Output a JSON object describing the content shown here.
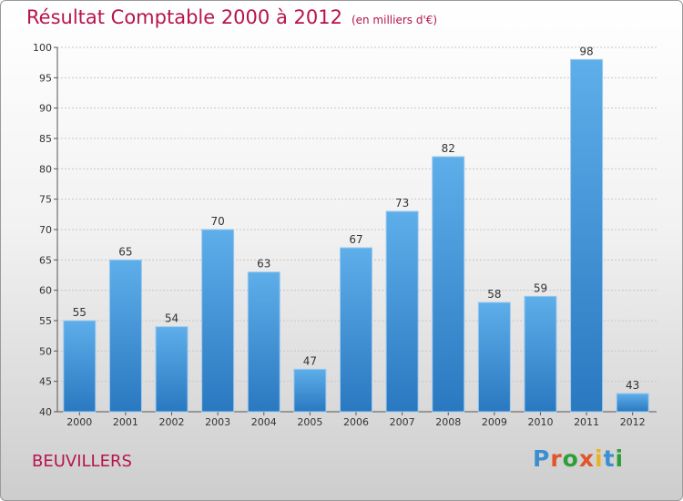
{
  "chart_data": {
    "type": "bar",
    "title": "Résultat Comptable 2000 à 2012",
    "subtitle": "(en milliers d'€)",
    "categories": [
      "2000",
      "2001",
      "2002",
      "2003",
      "2004",
      "2005",
      "2006",
      "2007",
      "2008",
      "2009",
      "2010",
      "2011",
      "2012"
    ],
    "values": [
      55,
      65,
      54,
      70,
      63,
      47,
      67,
      73,
      82,
      58,
      59,
      98,
      43
    ],
    "ylim": [
      40,
      100
    ],
    "yticks": [
      40,
      45,
      50,
      55,
      60,
      65,
      70,
      75,
      80,
      85,
      90,
      95,
      100
    ],
    "xlabel": "",
    "ylabel": "",
    "grid": true,
    "bar_color": "#3d8fd6"
  },
  "location": "BEUVILLERS",
  "logo": {
    "text": "Proxiti",
    "letters": [
      "P",
      "r",
      "o",
      "x",
      "i",
      "t",
      "i"
    ],
    "colors": [
      "#3b8fd0",
      "#e0552a",
      "#2f9e3a",
      "#e0552a",
      "#e8b423",
      "#3b8fd0",
      "#2f9e3a"
    ]
  }
}
